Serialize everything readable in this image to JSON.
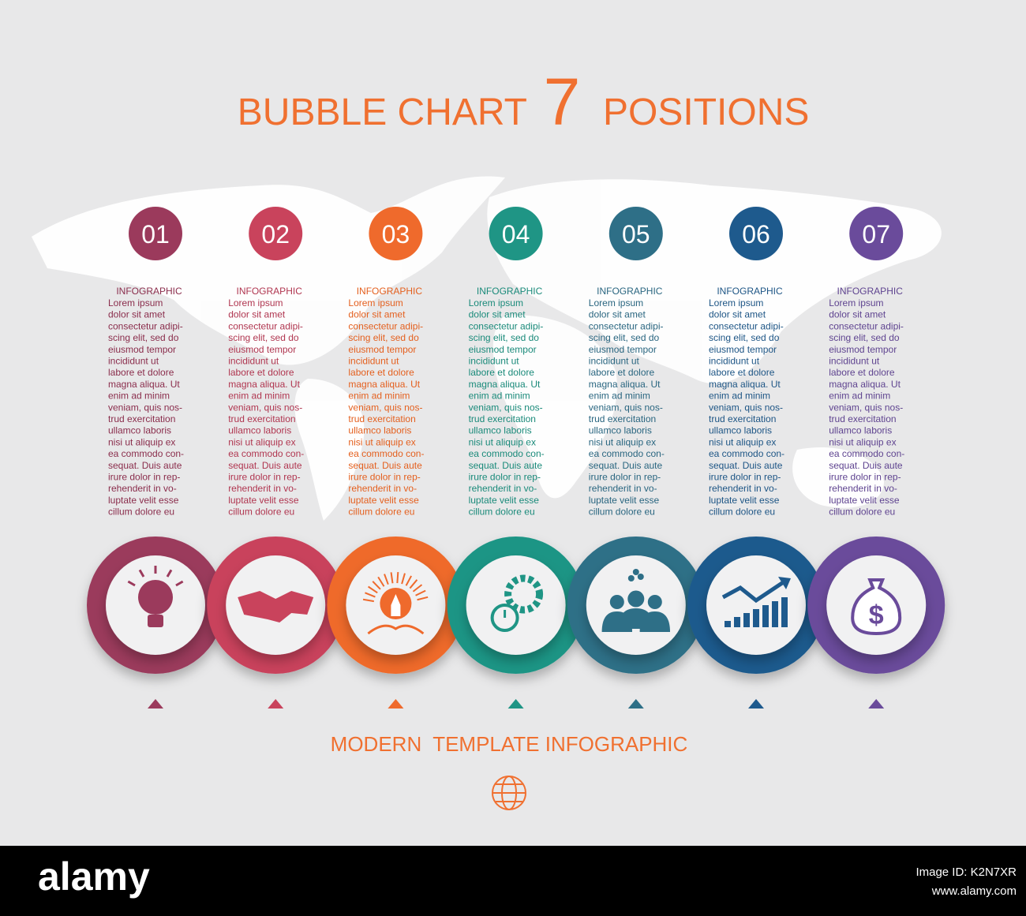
{
  "header": {
    "title_left": "BUBBLE CHART",
    "title_number": "7",
    "title_right": "POSITIONS"
  },
  "items": [
    {
      "number": "01",
      "heading": "INFOGRAPHIC",
      "color": "#9b3a5c",
      "text_color": "#8a2d4c",
      "icon": "bulb",
      "lines": [
        "Lorem ipsum",
        "dolor sit amet",
        "consectetur adipi-",
        "scing elit, sed do",
        "eiusmod tempor",
        "incididunt ut",
        "labore et dolore",
        "magna aliqua. Ut",
        "enim ad minim",
        "veniam, quis nos-",
        "trud exercitation",
        "ullamco laboris",
        "nisi ut aliquip ex",
        "ea commodo con-",
        "sequat. Duis aute",
        "irure dolor in rep-",
        "rehenderit in vo-",
        "luptate velit esse",
        "cillum dolore eu"
      ]
    },
    {
      "number": "02",
      "heading": "INFOGRAPHIC",
      "color": "#c9435c",
      "text_color": "#b03650",
      "icon": "hands",
      "lines": [
        "Lorem ipsum",
        "dolor sit amet",
        "consectetur adipi-",
        "scing elit, sed do",
        "eiusmod tempor",
        "incididunt ut",
        "labore et dolore",
        "magna aliqua. Ut",
        "enim ad minim",
        "veniam, quis nos-",
        "trud exercitation",
        "ullamco laboris",
        "nisi ut aliquip ex",
        "ea commodo con-",
        "sequat. Duis aute",
        "irure dolor in rep-",
        "rehenderit in vo-",
        "luptate velit esse",
        "cillum dolore eu"
      ]
    },
    {
      "number": "03",
      "heading": "INFOGRAPHIC",
      "color": "#ef6a2c",
      "text_color": "#e4601f",
      "icon": "rocket",
      "lines": [
        "Lorem ipsum",
        "dolor sit amet",
        "consectetur adipi-",
        "scing elit, sed do",
        "eiusmod tempor",
        "incididunt ut",
        "labore et dolore",
        "magna aliqua. Ut",
        "enim ad minim",
        "veniam, quis nos-",
        "trud exercitation",
        "ullamco laboris",
        "nisi ut aliquip ex",
        "ea commodo con-",
        "sequat. Duis aute",
        "irure dolor in rep-",
        "rehenderit in vo-",
        "luptate velit esse",
        "cillum dolore eu"
      ]
    },
    {
      "number": "04",
      "heading": "INFOGRAPHIC",
      "color": "#1f9585",
      "text_color": "#1a8a7a",
      "icon": "gears",
      "lines": [
        "Lorem ipsum",
        "dolor sit amet",
        "consectetur adipi-",
        "scing elit, sed do",
        "eiusmod tempor",
        "incididunt ut",
        "labore et dolore",
        "magna aliqua. Ut",
        "enim ad minim",
        "veniam, quis nos-",
        "trud exercitation",
        "ullamco laboris",
        "nisi ut aliquip ex",
        "ea commodo con-",
        "sequat. Duis aute",
        "irure dolor in rep-",
        "rehenderit in vo-",
        "luptate velit esse",
        "cillum dolore eu"
      ]
    },
    {
      "number": "05",
      "heading": "INFOGRAPHIC",
      "color": "#2e6f87",
      "text_color": "#2a6680",
      "icon": "team",
      "lines": [
        "Lorem ipsum",
        "dolor sit amet",
        "consectetur adipi-",
        "scing elit, sed do",
        "eiusmod tempor",
        "incididunt ut",
        "labore et dolore",
        "magna aliqua. Ut",
        "enim ad minim",
        "veniam, quis nos-",
        "trud exercitation",
        "ullamco laboris",
        "nisi ut aliquip ex",
        "ea commodo con-",
        "sequat. Duis aute",
        "irure dolor in rep-",
        "rehenderit in vo-",
        "luptate velit esse",
        "cillum dolore eu"
      ]
    },
    {
      "number": "06",
      "heading": "INFOGRAPHIC",
      "color": "#1e5a8d",
      "text_color": "#1d5585",
      "icon": "growth",
      "lines": [
        "Lorem ipsum",
        "dolor sit amet",
        "consectetur adipi-",
        "scing elit, sed do",
        "eiusmod tempor",
        "incididunt ut",
        "labore et dolore",
        "magna aliqua. Ut",
        "enim ad minim",
        "veniam, quis nos-",
        "trud exercitation",
        "ullamco laboris",
        "nisi ut aliquip ex",
        "ea commodo con-",
        "sequat. Duis aute",
        "irure dolor in rep-",
        "rehenderit in vo-",
        "luptate velit esse",
        "cillum dolore eu"
      ]
    },
    {
      "number": "07",
      "heading": "INFOGRAPHIC",
      "color": "#6a4b9b",
      "text_color": "#5f4490",
      "icon": "money",
      "lines": [
        "Lorem ipsum",
        "dolor sit amet",
        "consectetur adipi-",
        "scing elit, sed do",
        "eiusmod tempor",
        "incididunt ut",
        "labore et dolore",
        "magna aliqua. Ut",
        "enim ad minim",
        "veniam, quis nos-",
        "trud exercitation",
        "ullamco laboris",
        "nisi ut aliquip ex",
        "ea commodo con-",
        "sequat. Duis aute",
        "irure dolor in rep-",
        "rehenderit in vo-",
        "luptate velit esse",
        "cillum dolore eu"
      ]
    }
  ],
  "footer": {
    "subtitle": "MODERN  TEMPLATE INFOGRAPHIC"
  },
  "watermark": {
    "logo": "alamy",
    "image_id": "Image ID: K2N7XR",
    "url": "www.alamy.com"
  }
}
